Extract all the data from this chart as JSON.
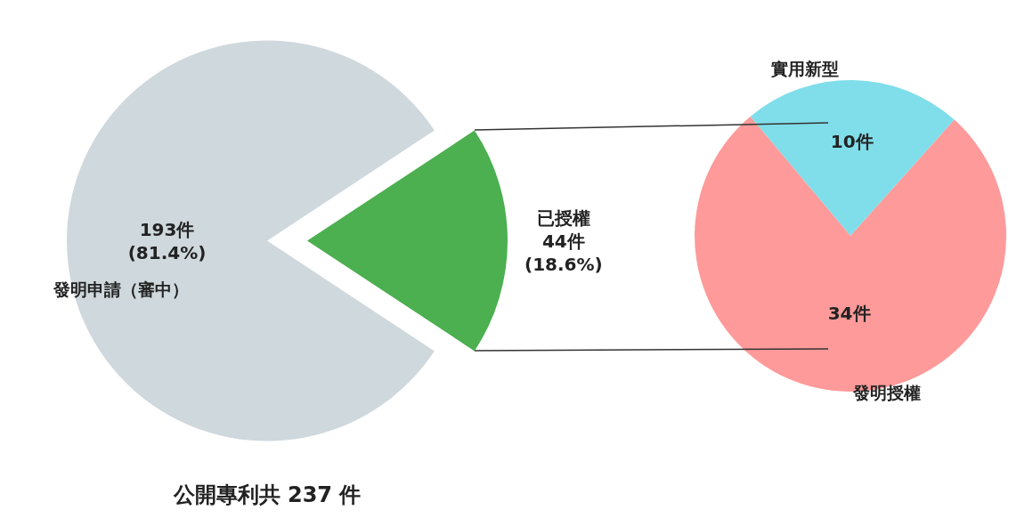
{
  "chart_data": [
    {
      "type": "pie",
      "title": "公開專利共 237 件",
      "categories": [
        "發明申請（審中）",
        "已授權"
      ],
      "values": [
        193,
        44
      ],
      "colors": [
        "#cfd8dc",
        "#4caf50"
      ],
      "value_labels": [
        "193件\n(81.4%)",
        "44件\n(18.6%)"
      ]
    },
    {
      "type": "pie",
      "categories": [
        "實用新型",
        "發明授權"
      ],
      "values": [
        10,
        34
      ],
      "colors": [
        "#80deea",
        "#ff9a9a"
      ],
      "value_labels": [
        "10件",
        "34件"
      ]
    }
  ]
}
